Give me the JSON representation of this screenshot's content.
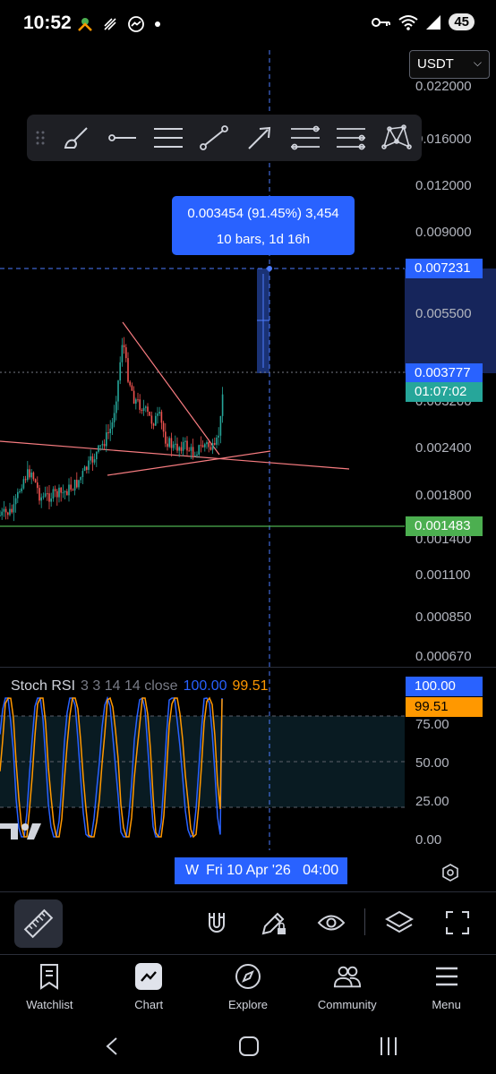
{
  "status_bar": {
    "time": "10:52",
    "battery": "45"
  },
  "price_chart": {
    "currency": "USDT",
    "price_axis": [
      "0.022000",
      "0.016000",
      "0.012000",
      "0.009000",
      "0.005500",
      "0.003200",
      "0.002400",
      "0.001800",
      "0.001400",
      "0.001100",
      "0.000850",
      "0.000670"
    ],
    "measure_tooltip": {
      "line1": "0.003454 (91.45%) 3,454",
      "line2": "10 bars, 1d 16h"
    },
    "crosshair_price": "0.007231",
    "last_price": "0.003777",
    "countdown": "01:07:02",
    "horizontal_line_price": "0.001483",
    "colors": {
      "crosshair_tag": "#2962ff",
      "last_price_tag": "#2962ff",
      "countdown_tag": "#26a69a",
      "horizontal_line_tag": "#4caf50",
      "up_candle": "#26a69a",
      "down_candle": "#ef5350"
    }
  },
  "toolbar": {
    "tools": [
      "brush-icon",
      "horizontal-ray-icon",
      "parallel-lines-icon",
      "trend-line-icon",
      "arrow-icon",
      "fib-retracement-icon",
      "fib-extension-icon",
      "pattern-icon"
    ]
  },
  "stoch_rsi": {
    "name": "Stoch RSI",
    "params": "3 3 14 14 close",
    "k_value": "100.00",
    "d_value": "99.51",
    "axis": [
      "75.00",
      "50.00",
      "25.00",
      "0.00"
    ],
    "colors": {
      "k": "#2962ff",
      "d": "#ff9800"
    }
  },
  "date_cursor": {
    "label": "Fri 10 Apr '26",
    "time": "04:00",
    "partial": "W"
  },
  "nav": {
    "items": [
      {
        "label": "Watchlist",
        "icon": "watchlist-icon"
      },
      {
        "label": "Chart",
        "icon": "chart-icon"
      },
      {
        "label": "Explore",
        "icon": "compass-icon"
      },
      {
        "label": "Community",
        "icon": "community-icon"
      },
      {
        "label": "Menu",
        "icon": "menu-icon"
      }
    ]
  }
}
